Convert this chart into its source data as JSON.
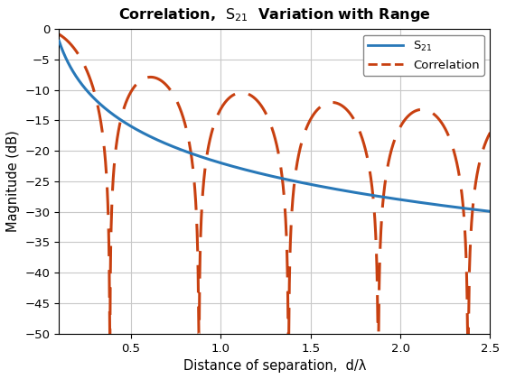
{
  "title": "Correlation,  S_{21}  Variation with Range",
  "xlabel": "Distance of separation,  d/λ",
  "ylabel": "Magnitude (dB)",
  "xlim": [
    0.1,
    2.5
  ],
  "ylim": [
    -50,
    0
  ],
  "yticks": [
    0,
    -5,
    -10,
    -15,
    -20,
    -25,
    -30,
    -35,
    -40,
    -45,
    -50
  ],
  "xticks": [
    0.5,
    1.0,
    1.5,
    2.0,
    2.5
  ],
  "s21_color": "#2878B8",
  "corr_color": "#C84010",
  "s21_linewidth": 2.2,
  "corr_linewidth": 2.2,
  "background_color": "#ffffff",
  "grid_color": "#c8c8c8"
}
